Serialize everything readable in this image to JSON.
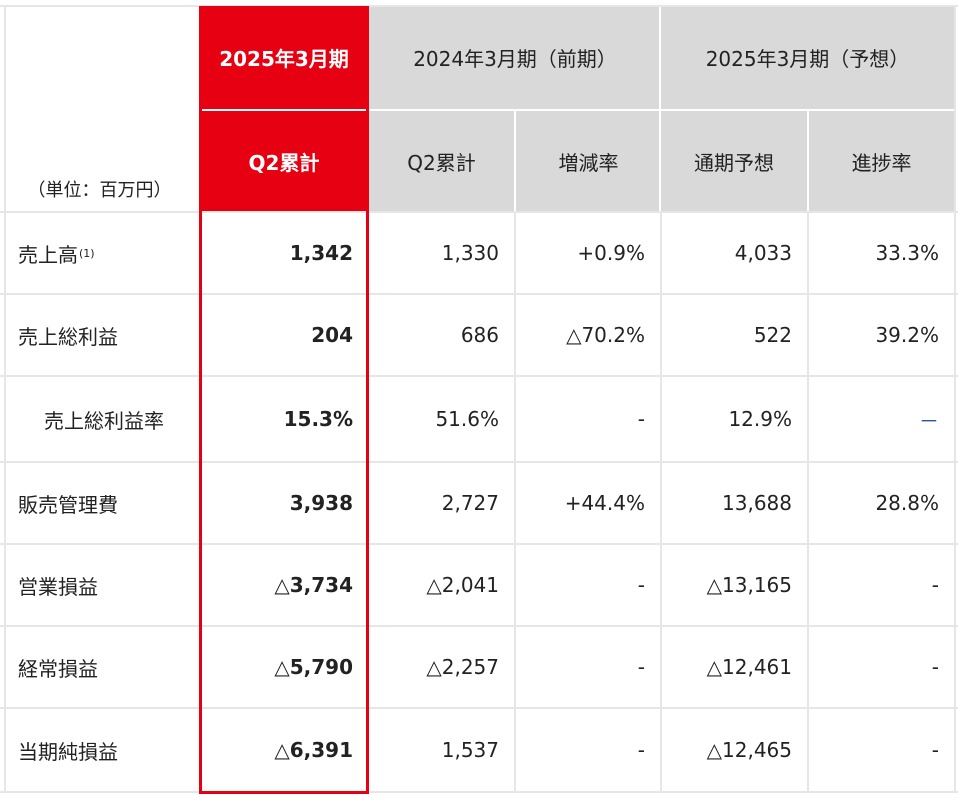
{
  "header": {
    "unit_label": "（単位：百万円）",
    "current_period": "2025年3月期",
    "prev_period": "2024年3月期（前期）",
    "forecast_period": "2025年3月期（予想）",
    "col_current_q2": "Q2累計",
    "col_prev_q2": "Q2累計",
    "col_change": "増減率",
    "col_full_year": "通期予想",
    "col_progress": "進捗率"
  },
  "rows": [
    {
      "label": "売上高",
      "note": "(1)",
      "current": "1,342",
      "prev": "1,330",
      "change": "+0.9%",
      "forecast": "4,033",
      "progress": "33.3%"
    },
    {
      "label": "売上総利益",
      "current": "204",
      "prev": "686",
      "change": "△70.2%",
      "forecast": "522",
      "progress": "39.2%"
    },
    {
      "label": "売上総利益率",
      "current": "15.3%",
      "prev": "51.6%",
      "change": "-",
      "forecast": "12.9%",
      "progress": "－"
    },
    {
      "label": "販売管理費",
      "current": "3,938",
      "prev": "2,727",
      "change": "+44.4%",
      "forecast": "13,688",
      "progress": "28.8%"
    },
    {
      "label": "営業損益",
      "current": "△3,734",
      "prev": "△2,041",
      "change": "-",
      "forecast": "△13,165",
      "progress": "-"
    },
    {
      "label": "経常損益",
      "current": "△5,790",
      "prev": "△2,257",
      "change": "-",
      "forecast": "△12,461",
      "progress": "-"
    },
    {
      "label": "当期純損益",
      "current": "△6,391",
      "prev": "1,537",
      "change": "-",
      "forecast": "△12,465",
      "progress": "-"
    }
  ],
  "colors": {
    "accent": "#e60012",
    "header_gray": "#d9d9d9",
    "grid": "#e6e6e6"
  }
}
